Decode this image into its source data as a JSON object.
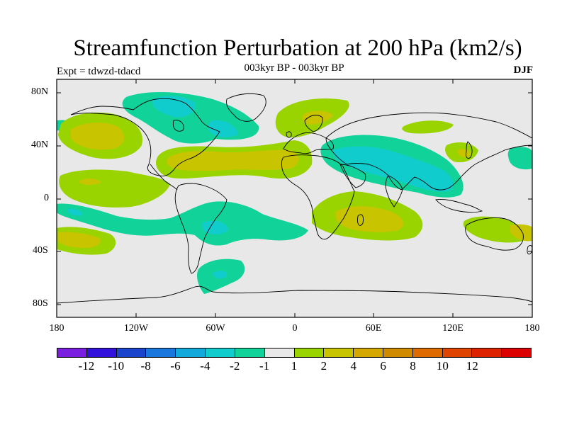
{
  "title": "Streamfunction Perturbation at 200 hPa (km2/s)",
  "subtitle": "003kyr BP - 003kyr BP",
  "left_string": "Expt = tdwzd-tdacd",
  "right_string": "DJF",
  "lat_labels": [
    "80N",
    "40N",
    "0",
    "40S",
    "80S"
  ],
  "lon_labels": [
    "180",
    "120W",
    "60W",
    "0",
    "60E",
    "120E",
    "180"
  ],
  "colorbar": {
    "colors": [
      "#7a1fe0",
      "#3311dd",
      "#1a44cc",
      "#1a77dd",
      "#13a9dd",
      "#11cccc",
      "#11d39a",
      "#e8e8e8",
      "#99d400",
      "#c8c400",
      "#d5a800",
      "#d08a00",
      "#df6a00",
      "#df4400",
      "#dd2200",
      "#dd0000"
    ],
    "labels": [
      "-12",
      "-10",
      "-8",
      "-6",
      "-4",
      "-2",
      "-1",
      "1",
      "2",
      "4",
      "6",
      "8",
      "10",
      "12"
    ]
  },
  "colors": {
    "background": "#e8e8e8",
    "positive_weak": "#99d400",
    "positive_mid": "#c8c400",
    "negative_weak": "#11d39a",
    "negative_mid": "#11cccc"
  }
}
